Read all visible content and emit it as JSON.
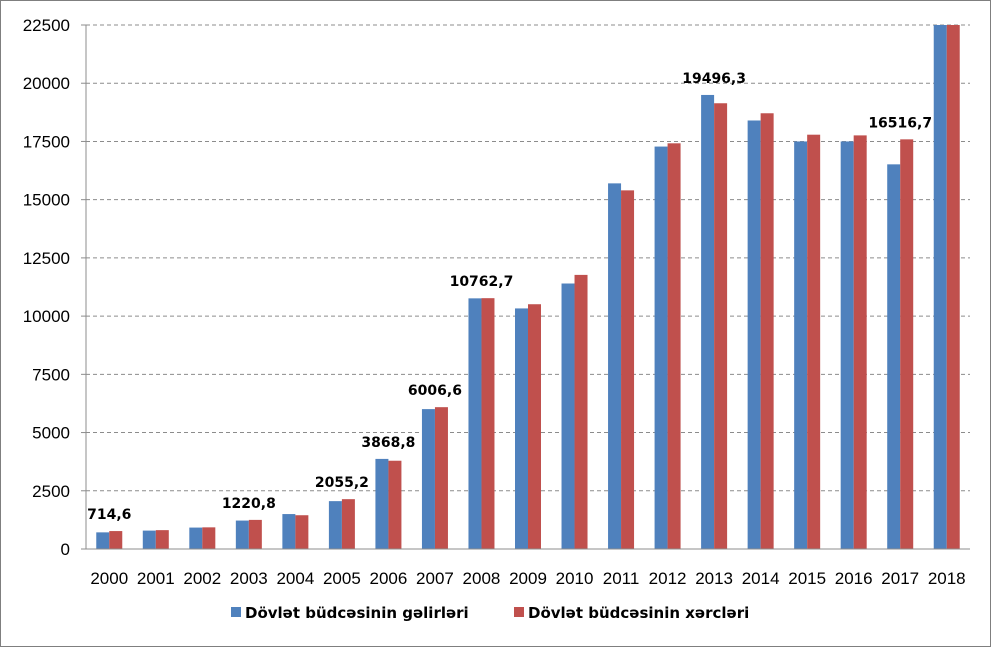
{
  "chart_data": {
    "type": "bar",
    "categories": [
      "2000",
      "2001",
      "2002",
      "2003",
      "2004",
      "2005",
      "2006",
      "2007",
      "2008",
      "2009",
      "2010",
      "2011",
      "2012",
      "2013",
      "2014",
      "2015",
      "2016",
      "2017",
      "2018"
    ],
    "series": [
      {
        "name": "Dövlət büdcəsinin gəlirləri",
        "color": "#4f81bd",
        "values": [
          714.6,
          790,
          920,
          1220.8,
          1500,
          2055.2,
          3868.8,
          6006.6,
          10762.7,
          10330,
          11400,
          15700,
          17280,
          19496.3,
          18400,
          17500,
          17500,
          16516.7,
          22500
        ]
      },
      {
        "name": "Dövlət büdcəsinin xərcləri",
        "color": "#c0504d",
        "values": [
          770,
          810,
          930,
          1250,
          1450,
          2140,
          3790,
          6090,
          10770,
          10510,
          11770,
          15400,
          17420,
          19140,
          18710,
          17790,
          17760,
          17590,
          22500
        ]
      }
    ],
    "data_labels": [
      {
        "index": 0,
        "text": "714,6"
      },
      {
        "index": 3,
        "text": "1220,8"
      },
      {
        "index": 5,
        "text": "2055,2"
      },
      {
        "index": 6,
        "text": "3868,8"
      },
      {
        "index": 7,
        "text": "6006,6"
      },
      {
        "index": 8,
        "text": "10762,7"
      },
      {
        "index": 13,
        "text": "19496,3"
      },
      {
        "index": 17,
        "text": "16516,7"
      }
    ],
    "yticks": [
      "0",
      "2500",
      "5000",
      "7500",
      "10000",
      "12500",
      "15000",
      "17500",
      "20000",
      "22500"
    ],
    "ylim": [
      0,
      22500
    ],
    "grid": "horizontal dashed",
    "legend_position": "bottom"
  }
}
